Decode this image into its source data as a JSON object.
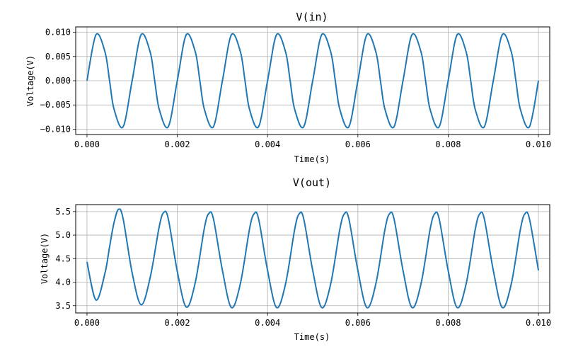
{
  "chart_data": [
    {
      "type": "line",
      "title": "V(in)",
      "xlabel": "Time(s)",
      "ylabel": "Voltage(V)",
      "xlim": [
        -0.00025,
        0.01025
      ],
      "ylim": [
        -0.0111,
        0.0111
      ],
      "xticks": [
        0.0,
        0.002,
        0.004,
        0.006,
        0.008,
        0.01
      ],
      "xtick_labels": [
        "0.000",
        "0.002",
        "0.004",
        "0.006",
        "0.008",
        "0.010"
      ],
      "yticks": [
        -0.01,
        -0.005,
        0.0,
        0.005,
        0.01
      ],
      "ytick_labels": [
        "−0.010",
        "−0.005",
        "0.000",
        "0.005",
        "0.010"
      ],
      "grid": true,
      "color": "#1f77b4",
      "series": [
        {
          "x": [
            0.0,
            0.0002,
            0.0004,
            0.0005,
            0.0006,
            0.0008,
            0.001,
            0.0012,
            0.0014,
            0.0015,
            0.0016,
            0.0018,
            0.002,
            0.0022,
            0.0024,
            0.0025,
            0.0026,
            0.0028,
            0.003,
            0.0032,
            0.0034,
            0.0035,
            0.0036,
            0.0038,
            0.004,
            0.0042,
            0.0044,
            0.0045,
            0.0046,
            0.0048,
            0.005,
            0.0052,
            0.0054,
            0.0055,
            0.0056,
            0.0058,
            0.006,
            0.0062,
            0.0064,
            0.0065,
            0.0066,
            0.0068,
            0.007,
            0.0072,
            0.0074,
            0.0075,
            0.0076,
            0.0078,
            0.008,
            0.0082,
            0.0084,
            0.0085,
            0.0086,
            0.0088,
            0.009,
            0.0092,
            0.0094,
            0.0095,
            0.0096,
            0.0098,
            0.01
          ],
          "y": [
            0.0,
            0.0095,
            0.0059,
            0.0,
            -0.0059,
            -0.0095,
            0.0,
            0.0095,
            0.0059,
            0.0,
            -0.0059,
            -0.0095,
            0.0,
            0.0095,
            0.0059,
            0.0,
            -0.0059,
            -0.0095,
            0.0,
            0.0095,
            0.0059,
            0.0,
            -0.0059,
            -0.0095,
            0.0,
            0.0095,
            0.0059,
            0.0,
            -0.0059,
            -0.0095,
            0.0,
            0.0095,
            0.0059,
            0.0,
            -0.0059,
            -0.0095,
            0.0,
            0.0095,
            0.0059,
            0.0,
            -0.0059,
            -0.0095,
            0.0,
            0.0095,
            0.0059,
            0.0,
            -0.0059,
            -0.0095,
            0.0,
            0.0095,
            0.0059,
            0.0,
            -0.0059,
            -0.0095,
            0.0,
            0.0095,
            0.0059,
            0.0,
            -0.0059,
            -0.0095,
            0.0
          ]
        }
      ]
    },
    {
      "type": "line",
      "title": "V(out)",
      "xlabel": "Time(s)",
      "ylabel": "Voltage(V)",
      "xlim": [
        -0.00025,
        0.01025
      ],
      "ylim": [
        3.346,
        5.648
      ],
      "xticks": [
        0.0,
        0.002,
        0.004,
        0.006,
        0.008,
        0.01
      ],
      "xtick_labels": [
        "0.000",
        "0.002",
        "0.004",
        "0.006",
        "0.008",
        "0.010"
      ],
      "yticks": [
        3.5,
        4.0,
        4.5,
        5.0,
        5.5
      ],
      "ytick_labels": [
        "3.5",
        "4.0",
        "4.5",
        "5.0",
        "5.5"
      ],
      "grid": true,
      "color": "#1f77b4",
      "series": [
        {
          "x": [
            0.0,
            0.0002,
            0.0004,
            0.0005,
            0.0006,
            0.0007,
            0.0008,
            0.001,
            0.0012,
            0.0014,
            0.0016,
            0.0017,
            0.0018,
            0.002,
            0.0022,
            0.0024,
            0.0026,
            0.0027,
            0.0028,
            0.003,
            0.0032,
            0.0034,
            0.0036,
            0.0037,
            0.0038,
            0.004,
            0.0042,
            0.0044,
            0.0046,
            0.0047,
            0.0048,
            0.005,
            0.0052,
            0.0054,
            0.0056,
            0.0057,
            0.0058,
            0.006,
            0.0062,
            0.0064,
            0.0066,
            0.0067,
            0.0068,
            0.007,
            0.0072,
            0.0074,
            0.0076,
            0.0077,
            0.0078,
            0.008,
            0.0082,
            0.0084,
            0.0086,
            0.0087,
            0.0088,
            0.009,
            0.0092,
            0.0094,
            0.0096,
            0.0097,
            0.0098,
            0.01
          ],
          "y": [
            4.43,
            3.62,
            4.2,
            4.75,
            5.27,
            5.55,
            5.35,
            4.2,
            3.52,
            4.1,
            5.18,
            5.48,
            5.35,
            4.23,
            3.47,
            4.0,
            5.15,
            5.46,
            5.35,
            4.25,
            3.46,
            3.98,
            5.13,
            5.45,
            5.35,
            4.25,
            3.46,
            3.97,
            5.12,
            5.45,
            5.35,
            4.25,
            3.46,
            3.97,
            5.12,
            5.45,
            5.35,
            4.25,
            3.46,
            3.97,
            5.12,
            5.45,
            5.35,
            4.25,
            3.46,
            3.97,
            5.12,
            5.45,
            5.35,
            4.25,
            3.46,
            3.97,
            5.12,
            5.45,
            5.35,
            4.25,
            3.46,
            3.97,
            5.12,
            5.45,
            5.35,
            4.25
          ]
        }
      ]
    }
  ]
}
